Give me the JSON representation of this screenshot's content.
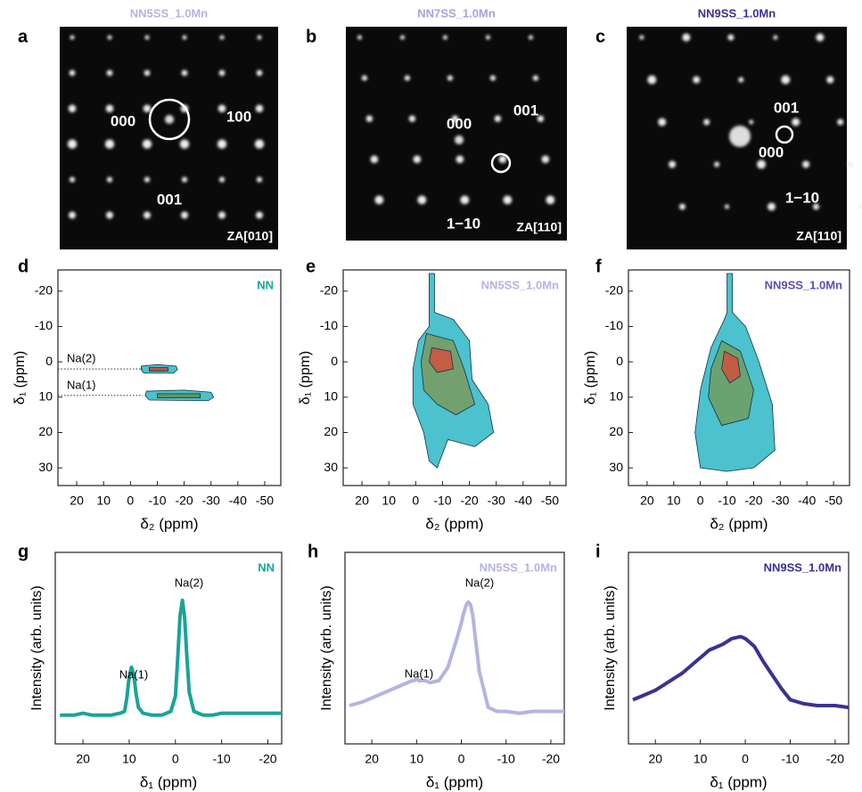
{
  "images": [
    {
      "letter": "a",
      "title": "NN5SS_1.0Mn",
      "title_color": "#b4b4e2",
      "labels": [
        "000",
        "100",
        "001"
      ],
      "zone_axis": "ZA[010]"
    },
    {
      "letter": "b",
      "title": "NN7SS_1.0Mn",
      "title_color": "#a6a2dc",
      "labels": [
        "000",
        "001",
        "1−10"
      ],
      "zone_axis": "ZA[110]"
    },
    {
      "letter": "c",
      "title": "NN9SS_1.0Mn",
      "title_color": "#3a3290",
      "labels": [
        "001",
        "000",
        "1−10"
      ],
      "zone_axis": "ZA[110]"
    }
  ],
  "chart_data": [
    {
      "type": "contour",
      "letter": "d",
      "label": "NN",
      "label_color": "#1aa39a",
      "xlabel": "δ₂ (ppm)",
      "ylabel": "δ₁ (ppm)",
      "xlim": [
        27,
        -56
      ],
      "ylim": [
        -26,
        35
      ],
      "xticks": [
        20,
        10,
        0,
        -10,
        -20,
        -30,
        -40,
        -50
      ],
      "yticks": [
        -20,
        -10,
        0,
        10,
        20,
        30
      ],
      "reference_lines": [
        {
          "label": "Na(2)",
          "y": 2
        },
        {
          "label": "Na(1)",
          "y": 9.5
        }
      ],
      "contours": [
        {
          "color": "#2bb7c4",
          "x": [
            -4,
            -10,
            -17,
            -17.5,
            -16,
            -5,
            -4
          ],
          "y": [
            1.2,
            0.8,
            1.2,
            2.2,
            3.2,
            3.2,
            2.2
          ]
        },
        {
          "color": "#c8452e",
          "x": [
            -7,
            -14,
            -14,
            -7
          ],
          "y": [
            1.6,
            1.6,
            2.6,
            2.6
          ]
        },
        {
          "color": "#2bb7c4",
          "x": [
            -6,
            -20,
            -30,
            -31,
            -29,
            -7,
            -5.5
          ],
          "y": [
            8.3,
            8.0,
            8.6,
            10,
            11,
            10.8,
            9.6
          ]
        },
        {
          "color": "#5f8f55",
          "x": [
            -10,
            -26,
            -26,
            -10
          ],
          "y": [
            9,
            9,
            10.2,
            10.2
          ]
        }
      ]
    },
    {
      "type": "contour",
      "letter": "e",
      "label": "NN5SS_1.0Mn",
      "label_color": "#b4b4e2",
      "xlabel": "δ₂ (ppm)",
      "ylabel": "δ₁ (ppm)",
      "xlim": [
        27,
        -56
      ],
      "ylim": [
        -26,
        35
      ],
      "xticks": [
        20,
        10,
        0,
        -10,
        -20,
        -30,
        -40,
        -50
      ],
      "yticks": [
        -20,
        -10,
        0,
        10,
        20,
        30
      ],
      "contours": [
        {
          "color": "#2bb7c4",
          "x": [
            -5,
            -7,
            -7,
            -14,
            -20,
            -21,
            -27,
            -29,
            -22,
            -12,
            -8,
            -5,
            -3,
            1,
            1,
            -1,
            -5
          ],
          "y": [
            -25,
            -25,
            -14,
            -12,
            -6,
            5,
            12,
            20,
            24,
            22,
            30,
            28,
            20,
            12,
            2,
            -6,
            -10
          ]
        },
        {
          "color": "#7a9a5e",
          "x": [
            -4,
            -14,
            -18,
            -22,
            -15,
            -8,
            -3,
            -2
          ],
          "y": [
            -8,
            -6,
            2,
            12,
            15,
            12,
            8,
            0
          ]
        },
        {
          "color": "#d2513a",
          "x": [
            -6,
            -13,
            -14,
            -8,
            -5
          ],
          "y": [
            -4,
            -3,
            2,
            3,
            0
          ]
        }
      ]
    },
    {
      "type": "contour",
      "letter": "f",
      "label": "NN9SS_1.0Mn",
      "label_color": "#5a4fb5",
      "xlabel": "δ₂ (ppm)",
      "ylabel": "δ₁ (ppm)",
      "xlim": [
        27,
        -56
      ],
      "ylim": [
        -26,
        35
      ],
      "xticks": [
        20,
        10,
        0,
        -10,
        -20,
        -30,
        -40,
        -50
      ],
      "yticks": [
        -20,
        -10,
        0,
        10,
        20,
        30
      ],
      "contours": [
        {
          "color": "#2bb7c4",
          "x": [
            -10,
            -12,
            -12,
            -17,
            -22,
            -27,
            -28,
            -20,
            -10,
            0,
            2,
            0,
            -4,
            -9,
            -10
          ],
          "y": [
            -25,
            -25,
            -14,
            -10,
            0,
            12,
            25,
            30,
            31,
            30,
            20,
            8,
            -4,
            -12,
            -14
          ]
        },
        {
          "color": "#6f9e62",
          "x": [
            -8,
            -15,
            -20,
            -18,
            -8,
            -3,
            -4
          ],
          "y": [
            -6,
            -3,
            8,
            16,
            18,
            10,
            2
          ]
        },
        {
          "color": "#d2513a",
          "x": [
            -9,
            -14,
            -15,
            -11,
            -8
          ],
          "y": [
            -3,
            -1,
            4,
            6,
            2
          ]
        }
      ]
    },
    {
      "type": "line",
      "letter": "g",
      "label": "NN",
      "label_color": "#1aa39a",
      "peak_labels": [
        "Na(1)",
        "Na(2)"
      ],
      "xlabel": "δ₁ (ppm)",
      "ylabel": "Intensity (arb. units)",
      "xlim": [
        26,
        -23
      ],
      "ylim": [
        0,
        1
      ],
      "xticks": [
        20,
        10,
        0,
        -10,
        -20
      ],
      "x": [
        25,
        22,
        20,
        18,
        16,
        14,
        12,
        11,
        10.5,
        10,
        9.5,
        9,
        8.5,
        8,
        7,
        5,
        3,
        1,
        0,
        -0.5,
        -1,
        -1.5,
        -2,
        -2.5,
        -3,
        -4,
        -6,
        -8,
        -10,
        -13,
        -16,
        -20,
        -23
      ],
      "series": [
        {
          "color": "#1aa39a",
          "values": [
            0.15,
            0.15,
            0.16,
            0.15,
            0.15,
            0.15,
            0.16,
            0.17,
            0.24,
            0.35,
            0.4,
            0.36,
            0.26,
            0.19,
            0.16,
            0.15,
            0.15,
            0.17,
            0.25,
            0.45,
            0.67,
            0.75,
            0.66,
            0.45,
            0.27,
            0.17,
            0.15,
            0.15,
            0.16,
            0.16,
            0.16,
            0.16,
            0.16
          ]
        }
      ]
    },
    {
      "type": "line",
      "letter": "h",
      "label": "NN5SS_1.0Mn",
      "label_color": "#b4b4e2",
      "peak_labels": [
        "Na(1)",
        "Na(2)"
      ],
      "xlabel": "δ₁ (ppm)",
      "ylabel": "Intensity (arb. units)",
      "xlim": [
        26,
        -23
      ],
      "ylim": [
        0,
        1
      ],
      "xticks": [
        20,
        10,
        0,
        -10,
        -20
      ],
      "x": [
        25,
        22,
        20,
        18,
        16,
        14,
        12,
        11,
        10.5,
        10,
        9.5,
        9,
        8.5,
        8,
        7,
        5,
        3,
        1,
        0,
        -0.5,
        -1,
        -1.5,
        -2,
        -2.5,
        -3,
        -4,
        -6,
        -8,
        -10,
        -13,
        -16,
        -20,
        -23
      ],
      "series": [
        {
          "color": "#b4b4e2",
          "values": [
            0.2,
            0.22,
            0.24,
            0.26,
            0.28,
            0.3,
            0.32,
            0.33,
            0.33,
            0.34,
            0.33,
            0.33,
            0.33,
            0.33,
            0.32,
            0.33,
            0.4,
            0.55,
            0.63,
            0.68,
            0.72,
            0.74,
            0.73,
            0.68,
            0.58,
            0.38,
            0.19,
            0.17,
            0.17,
            0.16,
            0.17,
            0.17,
            0.17
          ]
        }
      ]
    },
    {
      "type": "line",
      "letter": "i",
      "label": "NN9SS_1.0Mn",
      "label_color": "#3a3290",
      "xlabel": "δ₁ (ppm)",
      "ylabel": "Intensity (arb. units)",
      "xlim": [
        26,
        -23
      ],
      "ylim": [
        0,
        1
      ],
      "xticks": [
        20,
        10,
        0,
        -10,
        -20
      ],
      "x": [
        25,
        22,
        20,
        18,
        16,
        14,
        12,
        11,
        10.5,
        10,
        9.5,
        9,
        8.5,
        8,
        7,
        5,
        3,
        1,
        0,
        -0.5,
        -1,
        -1.5,
        -2,
        -2.5,
        -3,
        -4,
        -6,
        -8,
        -10,
        -13,
        -16,
        -20,
        -23
      ],
      "series": [
        {
          "color": "#3a3290",
          "values": [
            0.23,
            0.26,
            0.28,
            0.31,
            0.34,
            0.37,
            0.41,
            0.43,
            0.44,
            0.45,
            0.46,
            0.47,
            0.48,
            0.49,
            0.5,
            0.52,
            0.55,
            0.56,
            0.55,
            0.54,
            0.53,
            0.52,
            0.51,
            0.49,
            0.47,
            0.43,
            0.36,
            0.29,
            0.23,
            0.21,
            0.2,
            0.2,
            0.19
          ]
        }
      ]
    }
  ]
}
